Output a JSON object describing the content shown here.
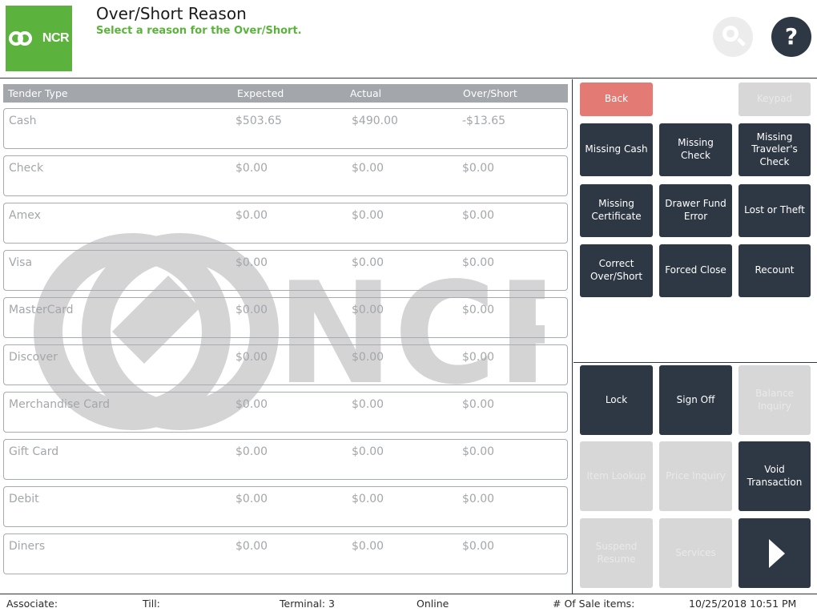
{
  "header": {
    "logo_text": "NCR",
    "title": "Over/Short Reason",
    "subtitle": "Select a reason for the Over/Short.",
    "help_label": "?"
  },
  "table": {
    "columns": [
      "Tender Type",
      "Expected",
      "Actual",
      "Over/Short"
    ],
    "rows": [
      {
        "tender": "Cash",
        "expected": "$503.65",
        "actual": "$490.00",
        "over_short": "-$13.65"
      },
      {
        "tender": "Check",
        "expected": "$0.00",
        "actual": "$0.00",
        "over_short": "$0.00"
      },
      {
        "tender": "Amex",
        "expected": "$0.00",
        "actual": "$0.00",
        "over_short": "$0.00"
      },
      {
        "tender": "Visa",
        "expected": "$0.00",
        "actual": "$0.00",
        "over_short": "$0.00"
      },
      {
        "tender": "MasterCard",
        "expected": "$0.00",
        "actual": "$0.00",
        "over_short": "$0.00"
      },
      {
        "tender": "Discover",
        "expected": "$0.00",
        "actual": "$0.00",
        "over_short": "$0.00"
      },
      {
        "tender": "Merchandise Card",
        "expected": "$0.00",
        "actual": "$0.00",
        "over_short": "$0.00"
      },
      {
        "tender": "Gift Card",
        "expected": "$0.00",
        "actual": "$0.00",
        "over_short": "$0.00"
      },
      {
        "tender": "Debit",
        "expected": "$0.00",
        "actual": "$0.00",
        "over_short": "$0.00"
      },
      {
        "tender": "Diners",
        "expected": "$0.00",
        "actual": "$0.00",
        "over_short": "$0.00"
      }
    ]
  },
  "watermark_text": "NCR",
  "actions": {
    "back": "Back",
    "keypad": "Keypad",
    "missing_cash": "Missing Cash",
    "missing_check": "Missing Check",
    "missing_travelers_check": "Missing Traveler's Check",
    "missing_certificate": "Missing Certificate",
    "drawer_fund_error": "Drawer Fund Error",
    "lost_or_theft": "Lost or Theft",
    "correct_over_short": "Correct Over/Short",
    "forced_close": "Forced Close",
    "recount": "Recount"
  },
  "nav": {
    "lock": "Lock",
    "sign_off": "Sign Off",
    "balance_inquiry": "Balance Inquiry",
    "item_lookup": "Item Lookup",
    "price_inquiry": "Price Inquiry",
    "void_transaction": "Void Transaction",
    "suspend_resume": "Suspend Resume",
    "services": "Services"
  },
  "status": {
    "associate": "Associate:",
    "till": "Till:",
    "terminal": "Terminal: 3",
    "connection": "Online",
    "sale_items": "# Of Sale items:",
    "datetime": "10/25/2018 10:51 PM"
  },
  "colors": {
    "brand_green": "#5bb33d",
    "dark_button": "#2e3744",
    "back_button": "#e37b74",
    "disabled_button": "#d7d7d7"
  }
}
